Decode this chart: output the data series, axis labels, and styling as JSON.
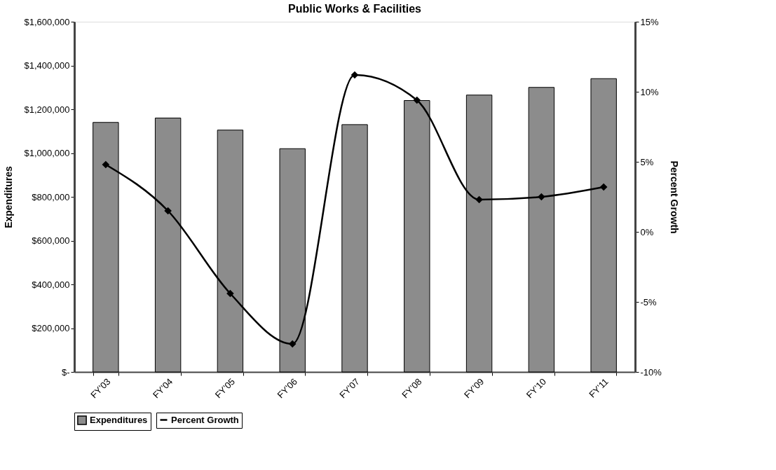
{
  "chart_data": {
    "type": "bar",
    "title": "Public Works & Facilities",
    "ylabel": "Expenditures",
    "y2label": "Percent Growth",
    "categories": [
      "FY'03",
      "FY'04",
      "FY'05",
      "FY'06",
      "FY'07",
      "FY'08",
      "FY'09",
      "FY'10",
      "FY'11"
    ],
    "series": [
      {
        "name": "Expenditures",
        "color": "#8c8c8c",
        "values": [
          1140000,
          1160000,
          1105000,
          1020000,
          1130000,
          1240000,
          1265000,
          1300000,
          1340000
        ]
      },
      {
        "name": "Percent Growth",
        "type": "line",
        "axis": "y2",
        "color": "#000000",
        "values": [
          4.8,
          1.5,
          -4.4,
          -8.0,
          11.2,
          9.4,
          2.3,
          2.5,
          3.2
        ]
      }
    ],
    "ylim": [
      0,
      1600000
    ],
    "yticks": [
      {
        "value": 0,
        "label": "$-"
      },
      {
        "value": 200000,
        "label": "$200,000"
      },
      {
        "value": 400000,
        "label": "$400,000"
      },
      {
        "value": 600000,
        "label": "$600,000"
      },
      {
        "value": 800000,
        "label": "$800,000"
      },
      {
        "value": 1000000,
        "label": "$1,000,000"
      },
      {
        "value": 1200000,
        "label": "$1,200,000"
      },
      {
        "value": 1400000,
        "label": "$1,400,000"
      },
      {
        "value": 1600000,
        "label": "$1,600,000"
      }
    ],
    "y2lim": [
      -10,
      15
    ],
    "y2ticks": [
      {
        "value": -10,
        "label": "-10%"
      },
      {
        "value": -5,
        "label": "-5%"
      },
      {
        "value": 0,
        "label": "0%"
      },
      {
        "value": 5,
        "label": "5%"
      },
      {
        "value": 10,
        "label": "10%"
      },
      {
        "value": 15,
        "label": "15%"
      }
    ],
    "grid": false,
    "legend": "bottom",
    "marker": "diamond",
    "line_style": "solid"
  }
}
